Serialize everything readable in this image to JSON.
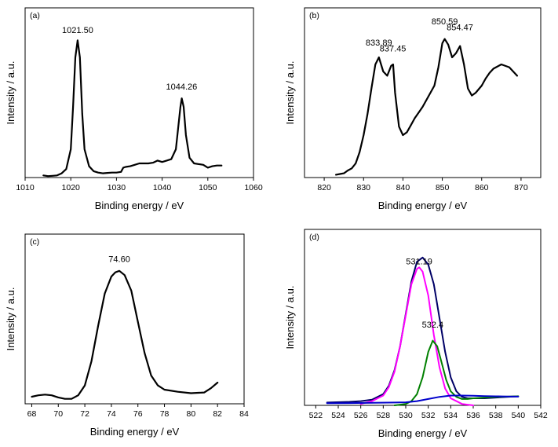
{
  "chart_data": [
    {
      "type": "line",
      "panel_label": "(a)",
      "xlabel": "Binding energy / eV",
      "ylabel": "Intensity / a.u.",
      "xlim": [
        1010,
        1060
      ],
      "ylim": [
        0,
        1.2
      ],
      "xticks": [
        1010,
        1020,
        1030,
        1040,
        1050,
        1060
      ],
      "annotations": [
        {
          "text": "1021.50",
          "x": 1021.5,
          "y": 1.0
        },
        {
          "text": "1044.26",
          "x": 1044.26,
          "y": 0.6
        }
      ],
      "series": [
        {
          "color": "#000000",
          "x": [
            1014,
            1015,
            1016,
            1017,
            1018,
            1019,
            1020,
            1020.5,
            1021,
            1021.5,
            1022,
            1022.5,
            1023,
            1024,
            1025,
            1026,
            1027,
            1028,
            1029,
            1030,
            1031,
            1031.5,
            1032,
            1033,
            1034,
            1035,
            1036,
            1037,
            1038,
            1039,
            1040,
            1041,
            1042,
            1043,
            1043.5,
            1044,
            1044.3,
            1044.7,
            1045.2,
            1046,
            1047,
            1048,
            1049,
            1050,
            1051,
            1052,
            1053
          ],
          "y": [
            0.015,
            0.01,
            0.012,
            0.015,
            0.03,
            0.06,
            0.2,
            0.5,
            0.85,
            0.97,
            0.85,
            0.45,
            0.2,
            0.08,
            0.045,
            0.035,
            0.03,
            0.033,
            0.035,
            0.035,
            0.04,
            0.07,
            0.075,
            0.08,
            0.09,
            0.1,
            0.1,
            0.1,
            0.105,
            0.12,
            0.11,
            0.12,
            0.13,
            0.2,
            0.35,
            0.5,
            0.56,
            0.5,
            0.3,
            0.14,
            0.1,
            0.095,
            0.09,
            0.07,
            0.08,
            0.085,
            0.085
          ]
        }
      ]
    },
    {
      "type": "line",
      "panel_label": "(b)",
      "xlabel": "Binding energy / eV",
      "ylabel": "Intensity / a.u.",
      "xlim": [
        815,
        875
      ],
      "ylim": [
        0,
        1.2
      ],
      "xticks": [
        820,
        830,
        840,
        850,
        860,
        870
      ],
      "annotations": [
        {
          "text": "833.89",
          "x": 833.89,
          "y": 0.91
        },
        {
          "text": "837.45",
          "x": 837.45,
          "y": 0.87
        },
        {
          "text": "850.59",
          "x": 850.59,
          "y": 1.06
        },
        {
          "text": "854.47",
          "x": 854.47,
          "y": 1.02
        }
      ],
      "series": [
        {
          "color": "#000000",
          "x": [
            823,
            824,
            825,
            826,
            827,
            828,
            829,
            830,
            831,
            832,
            833,
            833.9,
            835,
            836,
            837,
            837.5,
            838,
            839,
            840,
            841,
            842,
            843,
            844,
            845,
            846,
            847,
            848,
            849,
            850,
            850.6,
            851.5,
            852.5,
            853.5,
            854.5,
            855.5,
            856.5,
            857.5,
            858.5,
            860,
            861,
            862,
            863,
            865,
            867,
            869
          ],
          "y": [
            0.02,
            0.025,
            0.03,
            0.05,
            0.065,
            0.1,
            0.18,
            0.3,
            0.45,
            0.63,
            0.8,
            0.85,
            0.75,
            0.72,
            0.79,
            0.8,
            0.6,
            0.36,
            0.3,
            0.32,
            0.37,
            0.42,
            0.46,
            0.5,
            0.55,
            0.6,
            0.65,
            0.78,
            0.95,
            0.98,
            0.94,
            0.85,
            0.88,
            0.93,
            0.8,
            0.63,
            0.58,
            0.6,
            0.65,
            0.7,
            0.74,
            0.77,
            0.8,
            0.78,
            0.72
          ]
        }
      ]
    },
    {
      "type": "line",
      "panel_label": "(c)",
      "xlabel": "Binding energy / eV",
      "ylabel": "Intensity / a.u.",
      "xlim": [
        67.5,
        84
      ],
      "ylim": [
        0,
        1.2
      ],
      "xticks": [
        68,
        70,
        72,
        74,
        76,
        78,
        80,
        82,
        84
      ],
      "annotations": [
        {
          "text": "74.60",
          "x": 74.6,
          "y": 0.98
        }
      ],
      "series": [
        {
          "color": "#000000",
          "x": [
            68,
            68.5,
            69,
            69.5,
            70,
            70.5,
            71,
            71.5,
            72,
            72.5,
            73,
            73.5,
            74,
            74.3,
            74.6,
            75,
            75.5,
            76,
            76.5,
            77,
            77.5,
            78,
            79,
            80,
            81,
            81.5,
            82
          ],
          "y": [
            0.05,
            0.06,
            0.065,
            0.06,
            0.045,
            0.035,
            0.035,
            0.06,
            0.13,
            0.3,
            0.55,
            0.78,
            0.9,
            0.93,
            0.94,
            0.91,
            0.8,
            0.58,
            0.36,
            0.2,
            0.13,
            0.1,
            0.085,
            0.075,
            0.08,
            0.11,
            0.15
          ]
        }
      ]
    },
    {
      "type": "line",
      "panel_label": "(d)",
      "xlabel": "Binding energy / eV",
      "ylabel": "Intensity / a.u.",
      "xlim": [
        521,
        542
      ],
      "ylim": [
        0,
        1.25
      ],
      "xticks": [
        522,
        524,
        526,
        528,
        530,
        532,
        534,
        536,
        538,
        540,
        542
      ],
      "annotations": [
        {
          "text": "531.19",
          "x": 531.19,
          "y": 0.98
        },
        {
          "text": "532.4",
          "x": 532.4,
          "y": 0.53
        }
      ],
      "series": [
        {
          "color": "#000066",
          "x": [
            523,
            525,
            526,
            527,
            528,
            528.5,
            529,
            529.5,
            530,
            530.5,
            531,
            531.5,
            532,
            532.5,
            533,
            533.5,
            534,
            534.5,
            535,
            535.5,
            536,
            537,
            538,
            539,
            540
          ],
          "y": [
            0.02,
            0.025,
            0.03,
            0.04,
            0.08,
            0.14,
            0.25,
            0.42,
            0.65,
            0.88,
            1.02,
            1.05,
            1.0,
            0.86,
            0.62,
            0.38,
            0.2,
            0.1,
            0.06,
            0.05,
            0.05,
            0.05,
            0.055,
            0.06,
            0.065
          ]
        },
        {
          "color": "#ff00ff",
          "x": [
            526,
            527,
            528,
            528.5,
            529,
            529.5,
            530,
            530.5,
            531,
            531.2,
            531.5,
            532,
            532.5,
            533,
            533.5,
            534,
            535,
            536
          ],
          "y": [
            0.01,
            0.03,
            0.07,
            0.13,
            0.24,
            0.42,
            0.64,
            0.86,
            0.97,
            0.98,
            0.95,
            0.78,
            0.5,
            0.27,
            0.12,
            0.05,
            0.01,
            0.0
          ]
        },
        {
          "color": "#008000",
          "x": [
            529,
            530,
            530.5,
            531,
            531.5,
            532,
            532.4,
            532.8,
            533.2,
            533.6,
            534,
            534.5,
            535,
            535.5,
            536,
            537,
            538,
            539,
            540
          ],
          "y": [
            0.0,
            0.01,
            0.03,
            0.08,
            0.2,
            0.38,
            0.46,
            0.42,
            0.3,
            0.18,
            0.1,
            0.06,
            0.045,
            0.045,
            0.05,
            0.055,
            0.06,
            0.062,
            0.064
          ]
        },
        {
          "color": "#0000cc",
          "x": [
            523,
            525,
            527,
            529,
            530,
            531,
            532,
            533,
            534,
            535,
            536,
            537,
            538,
            539,
            540
          ],
          "y": [
            0.015,
            0.016,
            0.018,
            0.02,
            0.022,
            0.03,
            0.045,
            0.06,
            0.07,
            0.07,
            0.068,
            0.066,
            0.064,
            0.063,
            0.062
          ]
        }
      ]
    }
  ]
}
